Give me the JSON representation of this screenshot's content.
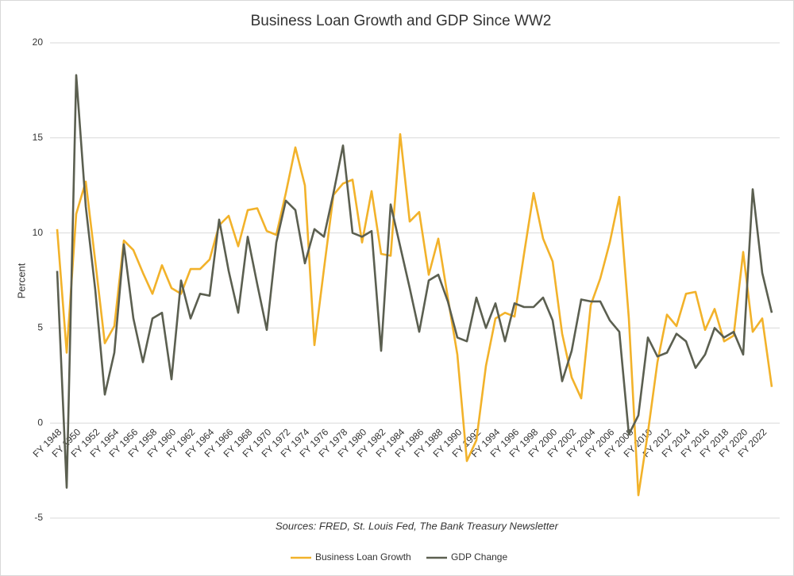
{
  "chart_data": {
    "type": "line",
    "title": "Business Loan Growth and GDP Since WW2",
    "y_label": "Percent",
    "annotation": "Sources: FRED, St. Louis Fed, The Bank Treasury Newsletter",
    "categories": [
      "FY 1948",
      null,
      "FY 1950",
      null,
      "FY 1952",
      null,
      "FY 1954",
      null,
      "FY 1956",
      null,
      "FY 1958",
      null,
      "FY 1960",
      null,
      "FY 1962",
      null,
      "FY 1964",
      null,
      "FY 1966",
      null,
      "FY 1968",
      null,
      "FY 1970",
      null,
      "FY 1972",
      null,
      "FY 1974",
      null,
      "FY 1976",
      null,
      "FY 1978",
      null,
      "FY 1980",
      null,
      "FY 1982",
      null,
      "FY 1984",
      null,
      "FY 1986",
      null,
      "FY 1988",
      null,
      "FY 1990",
      null,
      "FY 1992",
      null,
      "FY 1994",
      null,
      "FY 1996",
      null,
      "FY 1998",
      null,
      "FY 2000",
      null,
      "FY 2002",
      null,
      "FY 2004",
      null,
      "FY 2006",
      null,
      "FY 2008",
      null,
      "FY 2010",
      null,
      "FY 2012",
      null,
      "FY 2014",
      null,
      "FY 2016",
      null,
      "FY 2018",
      null,
      "FY 2020",
      null,
      "FY 2022",
      null
    ],
    "series": [
      {
        "name": "Business Loan Growth",
        "color": "#f2b22a",
        "values": [
          10.2,
          3.7,
          11.0,
          12.7,
          8.5,
          4.2,
          5.1,
          9.6,
          9.1,
          7.9,
          6.8,
          8.3,
          7.1,
          6.8,
          8.1,
          8.1,
          8.6,
          10.4,
          10.9,
          9.3,
          11.2,
          11.3,
          10.1,
          9.9,
          12.1,
          14.5,
          12.5,
          4.1,
          8.1,
          12.0,
          12.6,
          12.8,
          9.5,
          12.2,
          8.9,
          8.8,
          15.2,
          10.6,
          11.1,
          7.8,
          9.7,
          6.6,
          3.6,
          -2.0,
          -0.9,
          3.0,
          5.5,
          5.8,
          5.6,
          8.9,
          12.1,
          9.7,
          8.5,
          4.7,
          2.4,
          1.3,
          6.2,
          7.6,
          9.5,
          11.9,
          5.5,
          -3.8,
          -0.5,
          3.2,
          5.7,
          5.1,
          6.8,
          6.9,
          4.9,
          6.0,
          4.3,
          4.6,
          9.0,
          4.8,
          5.5,
          1.9
        ]
      },
      {
        "name": "GDP Change",
        "color": "#5b5f50",
        "values": [
          8.0,
          -3.4,
          18.3,
          11.4,
          7.0,
          1.5,
          3.7,
          9.4,
          5.5,
          3.2,
          5.5,
          5.8,
          2.3,
          7.5,
          5.5,
          6.8,
          6.7,
          10.7,
          8.0,
          5.8,
          9.8,
          7.3,
          4.9,
          9.5,
          11.7,
          11.2,
          8.4,
          10.2,
          9.8,
          12.1,
          14.6,
          10.0,
          9.8,
          10.1,
          3.8,
          11.5,
          9.3,
          7.1,
          4.8,
          7.5,
          7.8,
          6.4,
          4.5,
          4.3,
          6.6,
          5.0,
          6.3,
          4.3,
          6.3,
          6.1,
          6.1,
          6.6,
          5.4,
          2.2,
          3.8,
          6.5,
          6.4,
          6.4,
          5.4,
          4.8,
          -0.6,
          0.4,
          4.5,
          3.5,
          3.7,
          4.7,
          4.3,
          2.9,
          3.6,
          5.0,
          4.5,
          4.8,
          3.6,
          12.3,
          7.9,
          5.8
        ]
      }
    ],
    "ylim": [
      -5,
      20
    ],
    "yticks": [
      -5,
      0,
      5,
      10,
      15,
      20
    ],
    "grid": true,
    "legend": "bottom"
  }
}
